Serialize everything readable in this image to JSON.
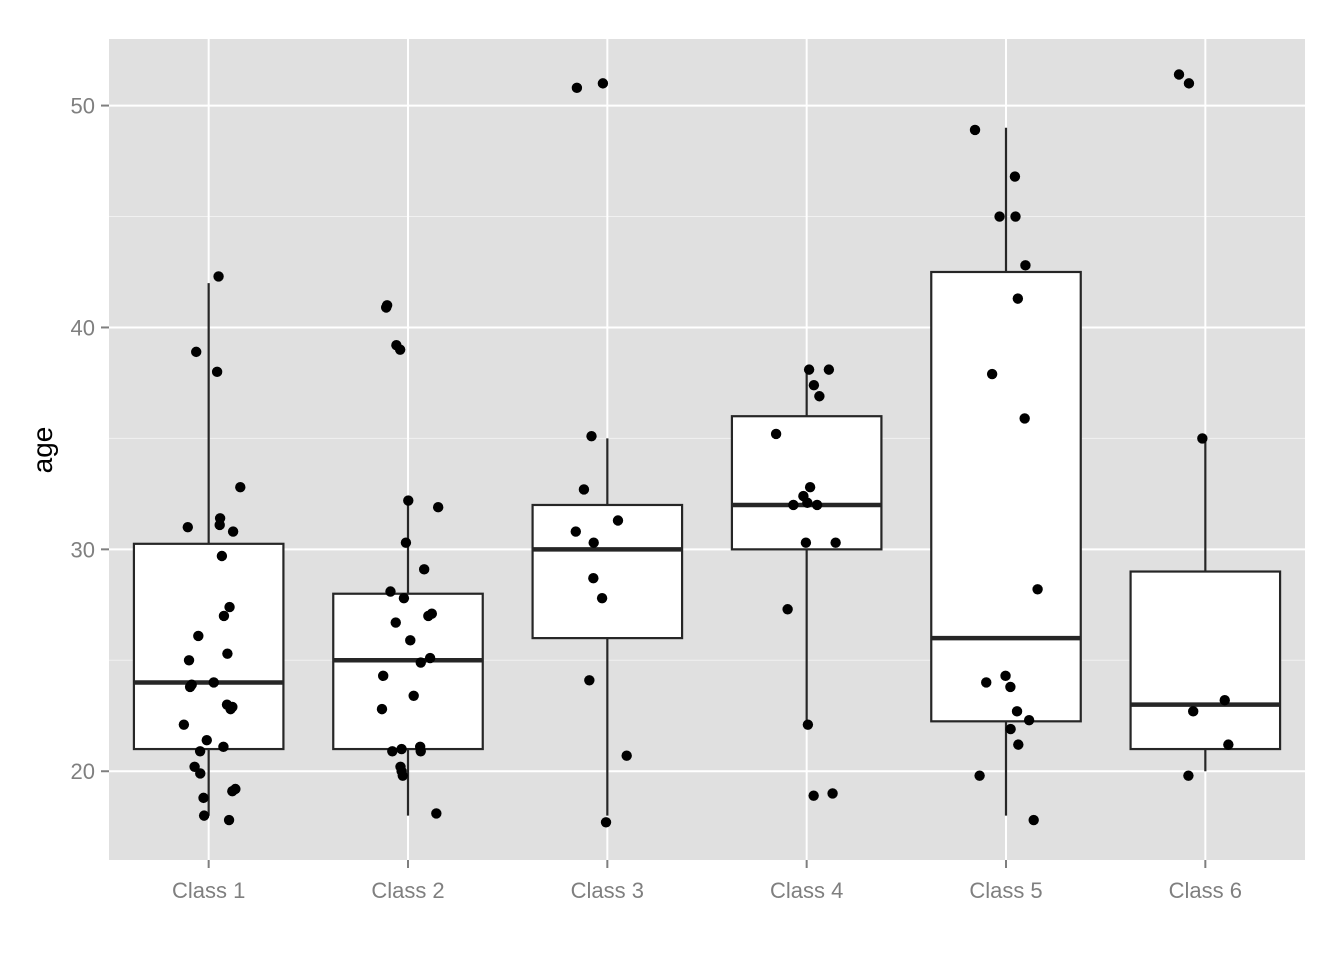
{
  "chart_data": {
    "type": "boxplot",
    "title": "",
    "xlabel": "",
    "ylabel": "age",
    "ylim": [
      16.0,
      53.0
    ],
    "y_ticks": [
      20,
      30,
      40,
      50
    ],
    "y_tick_labels": [
      "20",
      "30",
      "40",
      "50"
    ],
    "grid": true,
    "legend": "none",
    "categories": [
      "Class 1",
      "Class 2",
      "Class 3",
      "Class 4",
      "Class 5",
      "Class 6"
    ],
    "boxes": [
      {
        "category": "Class 1",
        "whisker_low": 18,
        "q1": 21,
        "median": 24,
        "q3": 30.25,
        "whisker_high": 42
      },
      {
        "category": "Class 2",
        "whisker_low": 18,
        "q1": 21,
        "median": 25,
        "q3": 28,
        "whisker_high": 32
      },
      {
        "category": "Class 3",
        "whisker_low": 18,
        "q1": 26,
        "median": 30,
        "q3": 32,
        "whisker_high": 35
      },
      {
        "category": "Class 4",
        "whisker_low": 22,
        "q1": 30,
        "median": 32,
        "q3": 36,
        "whisker_high": 38
      },
      {
        "category": "Class 5",
        "whisker_low": 18,
        "q1": 22.25,
        "median": 26,
        "q3": 42.5,
        "whisker_high": 49
      },
      {
        "category": "Class 6",
        "whisker_low": 20,
        "q1": 21,
        "median": 23,
        "q3": 29,
        "whisker_high": 35
      }
    ],
    "points": [
      [
        42.3,
        38.9,
        38.0,
        32.8,
        31.4,
        31.1,
        31.0,
        30.8,
        29.7,
        27.4,
        27.0,
        26.1,
        25.3,
        25.0,
        24.0,
        23.9,
        23.8,
        23.0,
        22.9,
        22.8,
        22.1,
        21.4,
        21.1,
        20.9,
        20.2,
        19.9,
        19.2,
        19.1,
        18.8,
        18.0,
        17.8
      ],
      [
        41.0,
        40.9,
        39.2,
        39.0,
        32.2,
        31.9,
        30.3,
        29.1,
        28.1,
        27.8,
        27.1,
        27.0,
        26.7,
        25.9,
        25.1,
        24.9,
        24.3,
        23.4,
        22.8,
        21.1,
        21.0,
        20.9,
        20.9,
        20.2,
        20.0,
        19.8,
        18.1
      ],
      [
        51.0,
        50.8,
        35.1,
        32.7,
        31.3,
        30.8,
        30.3,
        28.7,
        27.8,
        24.1,
        20.7,
        17.7
      ],
      [
        38.1,
        38.1,
        37.4,
        36.9,
        35.2,
        32.8,
        32.4,
        32.1,
        32.0,
        32.0,
        30.3,
        30.3,
        27.3,
        22.1,
        19.0,
        18.9
      ],
      [
        48.9,
        46.8,
        45.0,
        45.0,
        42.8,
        41.3,
        37.9,
        35.9,
        28.2,
        24.3,
        24.0,
        23.8,
        22.7,
        22.3,
        21.9,
        21.2,
        19.8,
        17.8
      ],
      [
        51.4,
        51.0,
        35.0,
        23.2,
        22.7,
        21.2,
        19.8
      ]
    ],
    "colors": {
      "panel_background": "#e0e0e0",
      "gridline": "#ffffff",
      "box_fill": "#ffffff",
      "box_stroke": "#262626",
      "point": "#000000",
      "tick_text": "#7f7f7f"
    }
  }
}
